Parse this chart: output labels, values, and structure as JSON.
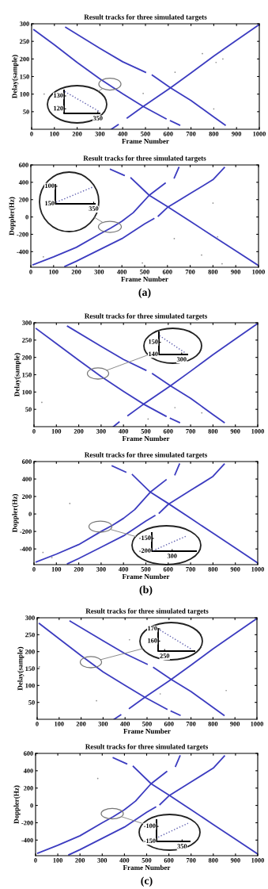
{
  "chart_data": [
    {
      "type": "line",
      "title": "Result tracks for three simulated targets",
      "xlabel": "Frame Number",
      "ylabel": "Delay(sample)",
      "xlim": [
        0,
        1000
      ],
      "ylim": [
        0,
        300
      ],
      "xticks": [
        0,
        100,
        200,
        300,
        400,
        500,
        600,
        700,
        800,
        900,
        1000
      ],
      "yticks": [
        50,
        100,
        150,
        200,
        250,
        300
      ],
      "annotations": [
        "130",
        "120",
        "350"
      ],
      "series": [
        {
          "color": "#3c3cc0",
          "x": [
            10,
            100,
            200,
            300,
            400,
            490,
            590,
            600,
            610,
            650
          ],
          "values": [
            283,
            240,
            190,
            143,
            101,
            65,
            30,
            null,
            24,
            12
          ]
        },
        {
          "color": "#3c3cc0",
          "x": [
            150,
            300,
            400,
            500,
            515,
            530,
            610,
            700,
            800,
            850
          ],
          "values": [
            290,
            230,
            192,
            162,
            null,
            154,
            118,
            82,
            35,
            12
          ]
        },
        {
          "color": "#3c3cc0",
          "x": [
            350,
            380,
            400,
            420,
            490,
            610,
            700,
            800,
            900,
            1000
          ],
          "values": [
            0,
            13,
            null,
            32,
            65,
            118,
            160,
            208,
            253,
            298
          ]
        },
        {
          "type": "scatter",
          "color": "#909090",
          "x": [
            55,
            490,
            630,
            750,
            810,
            840,
            800
          ],
          "values": [
            100,
            102,
            162,
            215,
            190,
            200,
            58
          ]
        }
      ]
    },
    {
      "type": "line",
      "title": "Result tracks for three simulated targets",
      "xlabel": "Frame Number",
      "ylabel": "Doppler(Hz)",
      "xlim": [
        0,
        1000
      ],
      "ylim": [
        -580,
        600
      ],
      "xticks": [
        0,
        100,
        200,
        300,
        400,
        500,
        600,
        700,
        800,
        900,
        1000
      ],
      "yticks": [
        -400,
        -200,
        0,
        200,
        400,
        600
      ],
      "annotations": [
        "100",
        "150",
        "350",
        "(a)"
      ],
      "series": [
        {
          "color": "#3c3cc0",
          "x": [
            10,
            100,
            200,
            300,
            350,
            400,
            450,
            520,
            590,
            610,
            630,
            650
          ],
          "values": [
            -550,
            -460,
            -350,
            -200,
            -130,
            -50,
            50,
            250,
            390,
            null,
            450,
            570
          ]
        },
        {
          "color": "#3c3cc0",
          "x": [
            150,
            200,
            300,
            400,
            500,
            540,
            550,
            560,
            600,
            700,
            800,
            850
          ],
          "values": [
            -570,
            -510,
            -380,
            -250,
            -80,
            -20,
            null,
            10,
            110,
            270,
            430,
            570
          ]
        },
        {
          "color": "#3c3cc0",
          "x": [
            350,
            410,
            425,
            440,
            520,
            600,
            700,
            800,
            900,
            1000
          ],
          "values": [
            550,
            480,
            null,
            450,
            250,
            120,
            -50,
            -220,
            -390,
            -560
          ]
        },
        {
          "type": "scatter",
          "color": "#909090",
          "x": [
            55,
            490,
            630,
            750,
            800,
            840,
            820
          ],
          "values": [
            -460,
            -530,
            -250,
            -440,
            160,
            -540,
            -230
          ]
        }
      ]
    },
    {
      "type": "line",
      "title": "Result tracks for three simulated targets",
      "xlabel": "Frame Number",
      "ylabel": "Delay(sample)",
      "xlim": [
        0,
        1000
      ],
      "ylim": [
        0,
        300
      ],
      "xticks": [
        0,
        100,
        200,
        300,
        400,
        500,
        600,
        700,
        800,
        900,
        1000
      ],
      "yticks": [
        50,
        100,
        150,
        200,
        250,
        300
      ],
      "annotations": [
        "150",
        "140",
        "300"
      ],
      "series": [
        {
          "color": "#3c3cc0",
          "x": [
            10,
            100,
            200,
            300,
            400,
            490,
            590,
            600,
            610,
            650
          ],
          "values": [
            283,
            240,
            192,
            145,
            102,
            65,
            30,
            null,
            24,
            12
          ]
        },
        {
          "color": "#3c3cc0",
          "x": [
            150,
            300,
            400,
            500,
            515,
            530,
            610,
            700,
            800,
            850
          ],
          "values": [
            290,
            232,
            194,
            163,
            null,
            153,
            118,
            82,
            35,
            12
          ]
        },
        {
          "color": "#3c3cc0",
          "x": [
            355,
            380,
            400,
            420,
            490,
            610,
            700,
            800,
            900,
            1000
          ],
          "values": [
            0,
            13,
            null,
            32,
            65,
            118,
            160,
            208,
            253,
            298
          ]
        },
        {
          "type": "scatter",
          "color": "#909090",
          "x": [
            35,
            510,
            630,
            750
          ],
          "values": [
            70,
            22,
            55,
            40
          ]
        }
      ]
    },
    {
      "type": "line",
      "title": "Result tracks for three simulated targets",
      "xlabel": "Frame Number",
      "ylabel": "Doppler(Hz)",
      "xlim": [
        0,
        1000
      ],
      "ylim": [
        -580,
        600
      ],
      "xticks": [
        0,
        100,
        200,
        300,
        400,
        500,
        600,
        700,
        800,
        900,
        1000
      ],
      "yticks": [
        -400,
        -200,
        0,
        200,
        400,
        600
      ],
      "annotations": [
        "-150",
        "-200",
        "300",
        "(b)"
      ],
      "series": [
        {
          "color": "#3c3cc0",
          "x": [
            10,
            100,
            200,
            300,
            350,
            400,
            450,
            520,
            590,
            610,
            630,
            650
          ],
          "values": [
            -550,
            -460,
            -350,
            -200,
            -130,
            -50,
            50,
            250,
            390,
            null,
            450,
            570
          ]
        },
        {
          "color": "#3c3cc0",
          "x": [
            150,
            200,
            300,
            400,
            500,
            540,
            550,
            560,
            600,
            700,
            800,
            850
          ],
          "values": [
            -570,
            -510,
            -380,
            -250,
            -80,
            -20,
            null,
            10,
            110,
            270,
            430,
            570
          ]
        },
        {
          "color": "#3c3cc0",
          "x": [
            350,
            410,
            425,
            440,
            520,
            600,
            700,
            800,
            900,
            1000
          ],
          "values": [
            550,
            480,
            null,
            450,
            250,
            120,
            -50,
            -220,
            -390,
            -560
          ]
        },
        {
          "type": "scatter",
          "color": "#909090",
          "x": [
            160,
            40,
            80
          ],
          "values": [
            120,
            -440,
            -500
          ]
        }
      ]
    },
    {
      "type": "line",
      "title": "Result tracks for three simulated targets",
      "xlabel": "Frame Number",
      "ylabel": "Delay(sample)",
      "xlim": [
        0,
        1000
      ],
      "ylim": [
        0,
        300
      ],
      "xticks": [
        0,
        100,
        200,
        300,
        400,
        500,
        600,
        700,
        800,
        900,
        1000
      ],
      "yticks": [
        50,
        100,
        150,
        200,
        250,
        300
      ],
      "annotations": [
        "170",
        "160",
        "250"
      ],
      "series": [
        {
          "color": "#3c3cc0",
          "x": [
            10,
            100,
            200,
            300,
            400,
            490,
            590,
            600,
            610,
            650
          ],
          "values": [
            283,
            238,
            188,
            140,
            100,
            65,
            30,
            null,
            24,
            12
          ]
        },
        {
          "color": "#3c3cc0",
          "x": [
            150,
            300,
            400,
            500,
            515,
            530,
            610,
            700,
            800,
            850
          ],
          "values": [
            290,
            232,
            194,
            163,
            null,
            153,
            118,
            82,
            35,
            12
          ]
        },
        {
          "color": "#3c3cc0",
          "x": [
            350,
            380,
            400,
            420,
            490,
            610,
            700,
            800,
            900,
            1000
          ],
          "values": [
            0,
            13,
            null,
            32,
            65,
            118,
            160,
            208,
            253,
            298
          ]
        },
        {
          "type": "scatter",
          "color": "#909090",
          "x": [
            10,
            270,
            420,
            560,
            860
          ],
          "values": [
            155,
            55,
            235,
            75,
            85
          ]
        }
      ]
    },
    {
      "type": "line",
      "title": "Result tracks for three simulated targets",
      "xlabel": "Frame Number",
      "ylabel": "Doppler(Hz)",
      "xlim": [
        0,
        1000
      ],
      "ylim": [
        -580,
        600
      ],
      "xticks": [
        0,
        100,
        200,
        300,
        400,
        500,
        600,
        700,
        800,
        900,
        1000
      ],
      "yticks": [
        -400,
        -200,
        0,
        200,
        400,
        600
      ],
      "annotations": [
        "-100",
        "-150",
        "350",
        "(c)"
      ],
      "series": [
        {
          "color": "#3c3cc0",
          "x": [
            10,
            100,
            200,
            300,
            350,
            400,
            450,
            520,
            590,
            610,
            630,
            650
          ],
          "values": [
            -550,
            -460,
            -350,
            -200,
            -130,
            -50,
            50,
            250,
            390,
            null,
            450,
            570
          ]
        },
        {
          "color": "#3c3cc0",
          "x": [
            150,
            200,
            300,
            400,
            500,
            540,
            550,
            560,
            600,
            700,
            800,
            850
          ],
          "values": [
            -570,
            -510,
            -380,
            -250,
            -80,
            -20,
            null,
            10,
            110,
            270,
            430,
            570
          ]
        },
        {
          "color": "#3c3cc0",
          "x": [
            350,
            410,
            425,
            440,
            520,
            600,
            700,
            800,
            900,
            1000
          ],
          "values": [
            550,
            480,
            null,
            450,
            250,
            120,
            -50,
            -220,
            -390,
            -560
          ]
        },
        {
          "type": "scatter",
          "color": "#909090",
          "x": [
            280
          ],
          "values": [
            310
          ]
        }
      ]
    }
  ]
}
